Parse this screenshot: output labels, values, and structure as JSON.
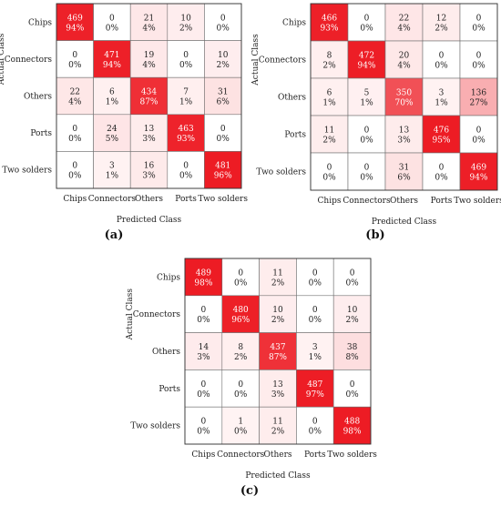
{
  "figure": {
    "panel_labels": [
      "(a)",
      "(b)",
      "(c)"
    ]
  },
  "chart_data": [
    {
      "type": "heatmap",
      "title": "",
      "xlabel": "Predicted Class",
      "ylabel": "Actual Class",
      "row_labels": [
        "Chips",
        "Connectors",
        "Others",
        "Ports",
        "Two solders"
      ],
      "col_labels": [
        "Chips",
        "Connectors",
        "Others",
        "Ports",
        "Two solders"
      ],
      "values": [
        [
          469,
          0,
          21,
          10,
          0
        ],
        [
          0,
          471,
          19,
          0,
          10
        ],
        [
          22,
          6,
          434,
          7,
          31
        ],
        [
          0,
          24,
          13,
          463,
          0
        ],
        [
          0,
          3,
          16,
          0,
          481
        ]
      ],
      "percents": [
        [
          "94%",
          "0%",
          "4%",
          "2%",
          "0%"
        ],
        [
          "0%",
          "94%",
          "4%",
          "0%",
          "2%"
        ],
        [
          "4%",
          "1%",
          "87%",
          "1%",
          "6%"
        ],
        [
          "0%",
          "5%",
          "3%",
          "93%",
          "0%"
        ],
        [
          "0%",
          "1%",
          "3%",
          "0%",
          "96%"
        ]
      ],
      "colorscale": {
        "low": "#ffffff",
        "high": "#ed1c24"
      }
    },
    {
      "type": "heatmap",
      "title": "",
      "xlabel": "Predicted Class",
      "ylabel": "Actual Class",
      "row_labels": [
        "Chips",
        "Connectors",
        "Others",
        "Ports",
        "Two solders"
      ],
      "col_labels": [
        "Chips",
        "Connectors",
        "Others",
        "Ports",
        "Two solders"
      ],
      "values": [
        [
          466,
          0,
          22,
          12,
          0
        ],
        [
          8,
          472,
          20,
          0,
          0
        ],
        [
          6,
          5,
          350,
          3,
          136
        ],
        [
          11,
          0,
          13,
          476,
          0
        ],
        [
          0,
          0,
          31,
          0,
          469
        ]
      ],
      "percents": [
        [
          "93%",
          "0%",
          "4%",
          "2%",
          "0%"
        ],
        [
          "2%",
          "94%",
          "4%",
          "0%",
          "0%"
        ],
        [
          "1%",
          "1%",
          "70%",
          "1%",
          "27%"
        ],
        [
          "2%",
          "0%",
          "3%",
          "95%",
          "0%"
        ],
        [
          "0%",
          "0%",
          "6%",
          "0%",
          "94%"
        ]
      ],
      "colorscale": {
        "low": "#ffffff",
        "high": "#ed1c24"
      }
    },
    {
      "type": "heatmap",
      "title": "",
      "xlabel": "Predicted Class",
      "ylabel": "Actual Class",
      "row_labels": [
        "Chips",
        "Connectors",
        "Others",
        "Ports",
        "Two solders"
      ],
      "col_labels": [
        "Chips",
        "Connectors",
        "Others",
        "Ports",
        "Two solders"
      ],
      "values": [
        [
          489,
          0,
          11,
          0,
          0
        ],
        [
          0,
          480,
          10,
          0,
          10
        ],
        [
          14,
          8,
          437,
          3,
          38
        ],
        [
          0,
          0,
          13,
          487,
          0
        ],
        [
          0,
          1,
          11,
          0,
          488
        ]
      ],
      "percents": [
        [
          "98%",
          "0%",
          "2%",
          "0%",
          "0%"
        ],
        [
          "0%",
          "96%",
          "2%",
          "0%",
          "2%"
        ],
        [
          "3%",
          "2%",
          "87%",
          "1%",
          "8%"
        ],
        [
          "0%",
          "0%",
          "3%",
          "97%",
          "0%"
        ],
        [
          "0%",
          "0%",
          "2%",
          "0%",
          "98%"
        ]
      ],
      "colorscale": {
        "low": "#ffffff",
        "high": "#ed1c24"
      }
    }
  ]
}
